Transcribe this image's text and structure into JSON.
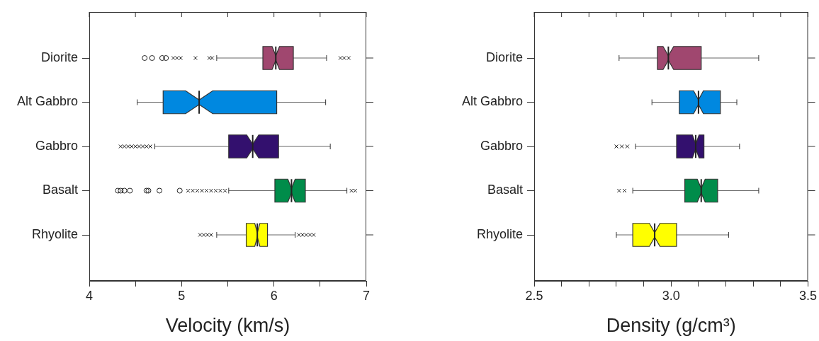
{
  "chart_data": [
    {
      "type": "box",
      "orientation": "horizontal",
      "xlabel": "Velocity (km/s)",
      "categories": [
        "Diorite",
        "Alt Gabbro",
        "Gabbro",
        "Basalt",
        "Rhyolite"
      ],
      "colors": [
        "#a0476f",
        "#0088e0",
        "#33106e",
        "#008c4a",
        "#ffff00"
      ],
      "xlim": [
        4,
        7
      ],
      "xticks": [
        4,
        {
          "value": 4.5,
          "label": null
        },
        5,
        {
          "value": 5.5,
          "label": null
        },
        6,
        {
          "value": 6.5,
          "label": null
        },
        7
      ],
      "grid": false,
      "legend": false,
      "boxes": [
        {
          "low": 5.38,
          "q1": 5.88,
          "median": 6.02,
          "q3": 6.21,
          "high": 6.57,
          "outliers": [
            4.6,
            4.68,
            4.79,
            4.83,
            4.91,
            4.95,
            4.99,
            5.15,
            5.3,
            5.33,
            6.72,
            6.76,
            6.81
          ]
        },
        {
          "low": 4.52,
          "q1": 4.8,
          "median": 5.19,
          "q3": 6.03,
          "high": 6.56
        },
        {
          "low": 4.71,
          "q1": 5.51,
          "median": 5.77,
          "q3": 6.05,
          "high": 6.61,
          "outliers": [
            4.34,
            4.38,
            4.42,
            4.46,
            4.5,
            4.54,
            4.58,
            4.62,
            4.66
          ]
        },
        {
          "low": 5.51,
          "q1": 6.01,
          "median": 6.19,
          "q3": 6.34,
          "high": 6.79,
          "outliers": [
            4.31,
            4.34,
            4.38,
            4.44,
            4.62,
            4.64,
            4.76,
            4.98,
            5.07,
            5.12,
            5.17,
            5.22,
            5.27,
            5.32,
            5.37,
            5.42,
            5.47,
            6.84,
            6.88
          ]
        },
        {
          "low": 5.38,
          "q1": 5.7,
          "median": 5.82,
          "q3": 5.93,
          "high": 6.23,
          "outliers": [
            5.2,
            5.24,
            5.28,
            5.32,
            6.27,
            6.31,
            6.35,
            6.39,
            6.43
          ]
        }
      ]
    },
    {
      "type": "box",
      "orientation": "horizontal",
      "xlabel": "Density (g/cm³)",
      "categories": [
        "Diorite",
        "Alt Gabbro",
        "Gabbro",
        "Basalt",
        "Rhyolite"
      ],
      "colors": [
        "#a0476f",
        "#0088e0",
        "#33106e",
        "#008c4a",
        "#ffff00"
      ],
      "xlim": [
        2.5,
        3.5
      ],
      "xticks": [
        2.5,
        {
          "value": 2.6,
          "label": null
        },
        {
          "value": 2.7,
          "label": null
        },
        {
          "value": 2.8,
          "label": null
        },
        {
          "value": 2.9,
          "label": null
        },
        {
          "value": 3,
          "label": "3.0"
        },
        {
          "value": 3.1,
          "label": null
        },
        {
          "value": 3.2,
          "label": null
        },
        {
          "value": 3.3,
          "label": null
        },
        {
          "value": 3.4,
          "label": null
        },
        3.5
      ],
      "grid": false,
      "legend": false,
      "boxes": [
        {
          "low": 2.81,
          "q1": 2.95,
          "median": 2.99,
          "q3": 3.11,
          "high": 3.32
        },
        {
          "low": 2.93,
          "q1": 3.03,
          "median": 3.1,
          "q3": 3.18,
          "high": 3.24
        },
        {
          "low": 2.87,
          "q1": 3.02,
          "median": 3.09,
          "q3": 3.12,
          "high": 3.25,
          "outliers": [
            2.8,
            2.82,
            2.84
          ]
        },
        {
          "low": 2.86,
          "q1": 3.05,
          "median": 3.11,
          "q3": 3.17,
          "high": 3.32,
          "outliers": [
            2.81,
            2.83
          ]
        },
        {
          "low": 2.8,
          "q1": 2.86,
          "median": 2.94,
          "q3": 3.02,
          "high": 3.21
        }
      ]
    }
  ]
}
